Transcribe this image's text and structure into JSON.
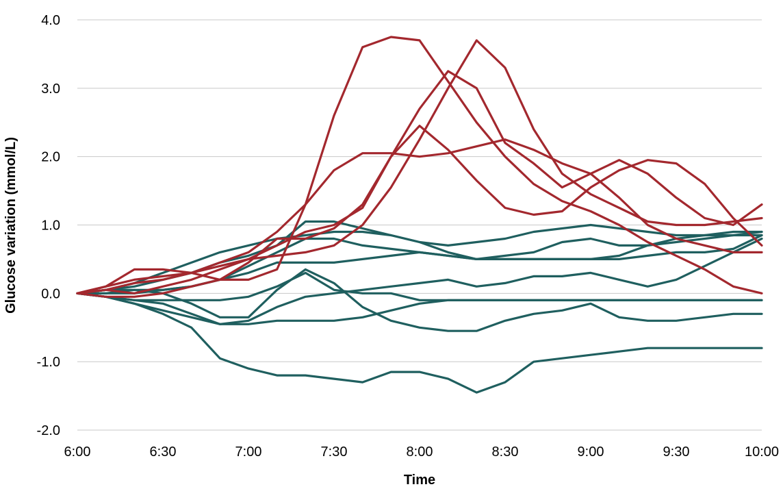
{
  "chart_data": {
    "type": "line",
    "xlabel": "Time",
    "ylabel": "Glucose variation (mmol/L)",
    "x": [
      "6:00",
      "6:10",
      "6:20",
      "6:30",
      "6:40",
      "6:50",
      "7:00",
      "7:10",
      "7:20",
      "7:30",
      "7:40",
      "7:50",
      "8:00",
      "8:10",
      "8:20",
      "8:30",
      "8:40",
      "8:50",
      "9:00",
      "9:10",
      "9:20",
      "9:30",
      "9:40",
      "9:50",
      "10:00"
    ],
    "x_tick_labels": [
      "6:00",
      "6:30",
      "7:00",
      "7:30",
      "8:00",
      "8:30",
      "9:00",
      "9:30",
      "10:00"
    ],
    "ylim": [
      -2,
      4
    ],
    "y_ticks": [
      -2,
      -1,
      0,
      1,
      2,
      3,
      4
    ],
    "y_tick_labels": [
      "-2.0",
      "-1.0",
      "0.0",
      "1.0",
      "2.0",
      "3.0",
      "4.0"
    ],
    "grid": true,
    "colors": {
      "high": "#a3282e",
      "low": "#1f5f5f"
    },
    "series": [
      {
        "group": "high",
        "values": [
          0,
          0.1,
          0.35,
          0.35,
          0.3,
          0.2,
          0.2,
          0.35,
          1.3,
          2.6,
          3.6,
          3.75,
          3.7,
          3.1,
          2.5,
          2.0,
          1.6,
          1.35,
          1.2,
          1.0,
          0.75,
          0.55,
          0.35,
          0.1,
          0.0
        ]
      },
      {
        "group": "high",
        "values": [
          0,
          0.05,
          0.15,
          0.2,
          0.3,
          0.45,
          0.6,
          0.9,
          1.3,
          1.8,
          2.05,
          2.05,
          2.0,
          2.05,
          2.15,
          2.25,
          2.1,
          1.9,
          1.75,
          1.4,
          1.0,
          0.8,
          0.7,
          0.6,
          0.6
        ]
      },
      {
        "group": "high",
        "values": [
          0,
          0.05,
          0.0,
          0.1,
          0.2,
          0.35,
          0.5,
          0.7,
          0.9,
          1.0,
          1.25,
          2.0,
          2.45,
          2.1,
          1.65,
          1.25,
          1.15,
          1.2,
          1.55,
          1.8,
          1.95,
          1.9,
          1.6,
          1.1,
          0.7
        ]
      },
      {
        "group": "high",
        "values": [
          0,
          0.1,
          0.2,
          0.25,
          0.3,
          0.4,
          0.5,
          0.55,
          0.6,
          0.7,
          1.0,
          1.55,
          2.25,
          3.0,
          3.7,
          3.3,
          2.4,
          1.75,
          1.45,
          1.25,
          1.05,
          1.0,
          1.0,
          1.05,
          1.1
        ]
      },
      {
        "group": "high",
        "values": [
          0,
          -0.05,
          -0.05,
          0.0,
          0.1,
          0.2,
          0.45,
          0.8,
          0.8,
          0.95,
          1.3,
          2.0,
          2.7,
          3.25,
          3.0,
          2.2,
          1.9,
          1.55,
          1.75,
          1.95,
          1.75,
          1.4,
          1.1,
          1.0,
          1.3
        ]
      },
      {
        "group": "low",
        "values": [
          0,
          0.05,
          0.15,
          0.3,
          0.45,
          0.6,
          0.7,
          0.8,
          0.85,
          0.9,
          0.9,
          0.85,
          0.75,
          0.7,
          0.75,
          0.8,
          0.9,
          0.95,
          1.0,
          0.95,
          0.9,
          0.85,
          0.85,
          0.85,
          0.85
        ]
      },
      {
        "group": "low",
        "values": [
          0,
          0.05,
          0.1,
          0.2,
          0.3,
          0.45,
          0.55,
          0.7,
          1.05,
          1.05,
          0.95,
          0.85,
          0.75,
          0.6,
          0.5,
          0.55,
          0.6,
          0.75,
          0.8,
          0.7,
          0.7,
          0.75,
          0.8,
          0.85,
          0.9
        ]
      },
      {
        "group": "low",
        "values": [
          0,
          0.0,
          0.0,
          0.05,
          0.1,
          0.2,
          0.4,
          0.6,
          0.8,
          0.8,
          0.7,
          0.65,
          0.6,
          0.55,
          0.5,
          0.5,
          0.5,
          0.5,
          0.5,
          0.55,
          0.7,
          0.8,
          0.85,
          0.9,
          0.9
        ]
      },
      {
        "group": "low",
        "values": [
          0,
          0.0,
          0.05,
          0.05,
          0.1,
          0.2,
          0.3,
          0.45,
          0.45,
          0.45,
          0.5,
          0.55,
          0.6,
          0.55,
          0.5,
          0.5,
          0.5,
          0.5,
          0.5,
          0.5,
          0.55,
          0.6,
          0.6,
          0.65,
          0.85
        ]
      },
      {
        "group": "low",
        "values": [
          0,
          -0.05,
          -0.1,
          -0.1,
          -0.1,
          -0.1,
          -0.05,
          0.1,
          0.3,
          0.05,
          0.0,
          0.0,
          -0.1,
          -0.1,
          -0.1,
          -0.1,
          -0.1,
          -0.1,
          -0.1,
          -0.1,
          -0.1,
          -0.1,
          -0.1,
          -0.1,
          -0.1
        ]
      },
      {
        "group": "low",
        "values": [
          0,
          -0.05,
          -0.1,
          -0.15,
          -0.3,
          -0.45,
          -0.4,
          -0.2,
          -0.05,
          0.0,
          0.05,
          0.1,
          0.15,
          0.2,
          0.1,
          0.15,
          0.25,
          0.25,
          0.3,
          0.2,
          0.1,
          0.2,
          0.4,
          0.6,
          0.8
        ]
      },
      {
        "group": "low",
        "values": [
          0,
          0.05,
          0.05,
          0.0,
          -0.15,
          -0.35,
          -0.35,
          0.05,
          0.35,
          0.15,
          -0.2,
          -0.4,
          -0.5,
          -0.55,
          -0.55,
          -0.4,
          -0.3,
          -0.25,
          -0.15,
          -0.35,
          -0.4,
          -0.4,
          -0.35,
          -0.3,
          -0.3
        ]
      },
      {
        "group": "low",
        "values": [
          0,
          -0.05,
          -0.15,
          -0.25,
          -0.35,
          -0.45,
          -0.45,
          -0.4,
          -0.4,
          -0.4,
          -0.35,
          -0.25,
          -0.15,
          -0.1,
          -0.1,
          -0.1,
          -0.1,
          -0.1,
          -0.1,
          -0.1,
          -0.1,
          -0.1,
          -0.1,
          -0.1,
          -0.1
        ]
      },
      {
        "group": "low",
        "values": [
          0,
          -0.05,
          -0.15,
          -0.3,
          -0.5,
          -0.95,
          -1.1,
          -1.2,
          -1.2,
          -1.25,
          -1.3,
          -1.15,
          -1.15,
          -1.25,
          -1.45,
          -1.3,
          -1.0,
          -0.95,
          -0.9,
          -0.85,
          -0.8,
          -0.8,
          -0.8,
          -0.8,
          -0.8
        ]
      }
    ]
  }
}
